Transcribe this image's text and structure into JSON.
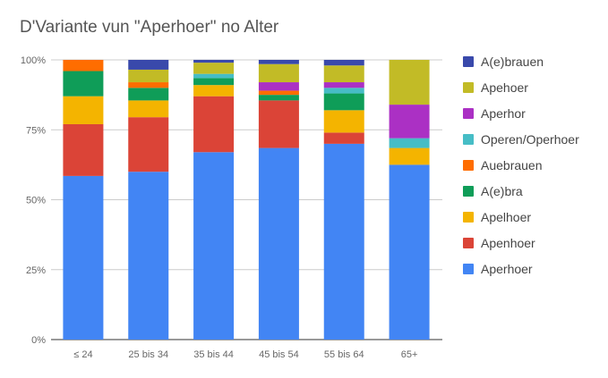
{
  "chart_data": {
    "type": "bar",
    "stacked": true,
    "normalized": true,
    "title": "D'Variante vun \"Aperhoer\" no Alter",
    "xlabel": "",
    "ylabel": "",
    "ylim": [
      0,
      100
    ],
    "y_ticks": [
      "0%",
      "25%",
      "50%",
      "75%",
      "100%"
    ],
    "grid": true,
    "legend_position": "right",
    "categories": [
      "≤ 24",
      "25 bis 34",
      "35 bis 44",
      "45 bis 54",
      "55 bis 64",
      "65+"
    ],
    "series": [
      {
        "name": "Aperhoer",
        "color": "#4285f4",
        "values": [
          58.5,
          60,
          67,
          68.5,
          70,
          62.5
        ]
      },
      {
        "name": "Apenhoer",
        "color": "#db4437",
        "values": [
          18.5,
          19.5,
          20,
          17,
          4,
          0
        ]
      },
      {
        "name": "Apelhoer",
        "color": "#f4b400",
        "values": [
          10,
          6,
          4,
          0,
          8,
          6
        ]
      },
      {
        "name": "A(e)bra",
        "color": "#0f9d58",
        "values": [
          9,
          4.5,
          2.5,
          2,
          6,
          0
        ]
      },
      {
        "name": "Auebrauen",
        "color": "#ff6d00",
        "values": [
          4,
          2,
          0,
          1.5,
          0,
          0
        ]
      },
      {
        "name": "Operen/Operhoer",
        "color": "#46bdc6",
        "values": [
          0,
          0,
          1.5,
          0,
          2,
          3.5
        ]
      },
      {
        "name": "Aperhor",
        "color": "#ab30c4",
        "values": [
          0,
          0,
          0,
          3,
          2,
          12
        ]
      },
      {
        "name": "Apehoer",
        "color": "#c2bb26",
        "values": [
          0,
          4.5,
          4,
          6.5,
          6,
          16
        ]
      },
      {
        "name": "A(e)brauen",
        "color": "#3949ab",
        "values": [
          0,
          3.5,
          1,
          1.5,
          2,
          0
        ]
      }
    ],
    "legend_order": [
      "A(e)brauen",
      "Apehoer",
      "Aperhor",
      "Operen/Operhoer",
      "Auebrauen",
      "A(e)bra",
      "Apelhoer",
      "Apenhoer",
      "Aperhoer"
    ]
  }
}
